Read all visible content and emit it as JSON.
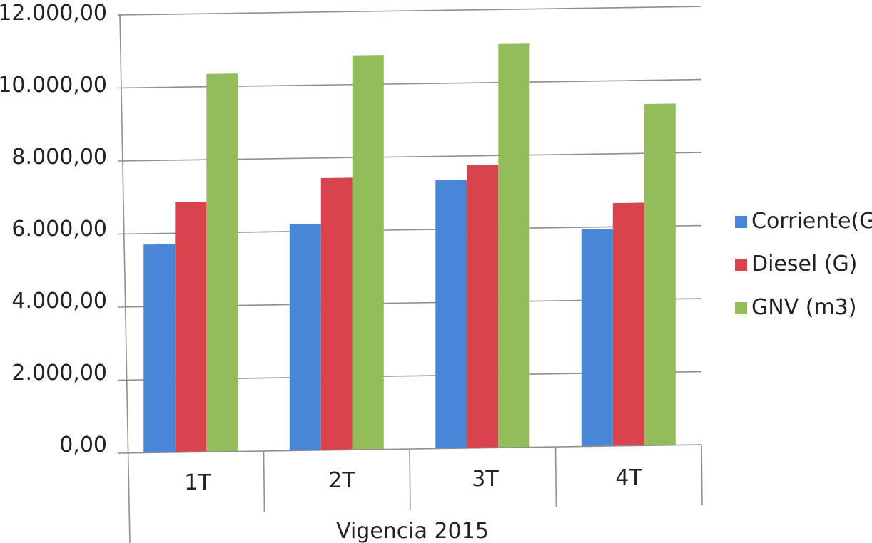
{
  "chart_data": {
    "type": "bar",
    "categories": [
      "1T",
      "2T",
      "3T",
      "4T"
    ],
    "group_label": "Vigencia 2015",
    "series": [
      {
        "name": "Corriente(G)",
        "color": "#4a86d8",
        "values": [
          5700,
          6200,
          7350,
          5950
        ]
      },
      {
        "name": "Diesel (G)",
        "color": "#d9434e",
        "values": [
          6850,
          7450,
          7750,
          6650
        ]
      },
      {
        "name": "GNV (m3)",
        "color": "#92bd5a",
        "values": [
          10350,
          10800,
          11050,
          9350
        ]
      }
    ],
    "y_ticks": [
      "0,00",
      "2.000,00",
      "4.000,00",
      "6.000,00",
      "8.000,00",
      "10.000,00",
      "12.000,00"
    ],
    "ylim": [
      0,
      12000
    ],
    "grid": true,
    "legend_position": "right"
  }
}
